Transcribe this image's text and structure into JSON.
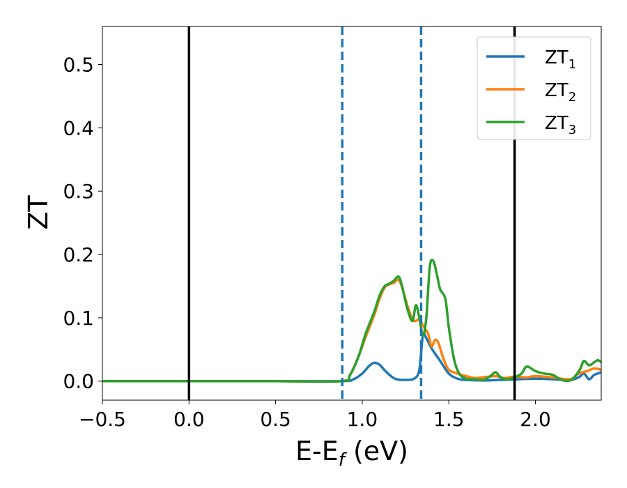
{
  "chart_data": {
    "type": "line",
    "xlabel": "E-E",
    "xlabel_sub": "f",
    "xlabel_unit": " (eV)",
    "ylabel": "ZT",
    "xlim": [
      -0.5,
      2.38
    ],
    "ylim": [
      -0.03,
      0.56
    ],
    "xticks": [
      -0.5,
      0.0,
      0.5,
      1.0,
      1.5,
      2.0
    ],
    "xtick_labels": [
      "−0.5",
      "0.0",
      "0.5",
      "1.0",
      "1.5",
      "2.0"
    ],
    "yticks": [
      0.0,
      0.1,
      0.2,
      0.3,
      0.4,
      0.5
    ],
    "ytick_labels": [
      "0.0",
      "0.1",
      "0.2",
      "0.3",
      "0.4",
      "0.5"
    ],
    "legend_position": "top-right",
    "vlines_solid": [
      0.0,
      1.88
    ],
    "vlines_dashed": [
      0.885,
      1.34
    ],
    "vline_solid_color": "#000000",
    "vline_dashed_color": "#1f77b4",
    "series": [
      {
        "name": "ZT",
        "name_sub": "1",
        "color": "#1f77b4",
        "x": [
          -0.5,
          0.0,
          0.5,
          0.88,
          0.95,
          1.0,
          1.04,
          1.07,
          1.1,
          1.13,
          1.17,
          1.2,
          1.25,
          1.3,
          1.33,
          1.35,
          1.37,
          1.4,
          1.45,
          1.5,
          1.55,
          1.6,
          1.7,
          1.8,
          1.9,
          2.0,
          2.1,
          2.2,
          2.25,
          2.28,
          2.31,
          2.34,
          2.38
        ],
        "y": [
          0.0,
          0.0,
          0.0,
          0.0,
          0.003,
          0.012,
          0.024,
          0.029,
          0.026,
          0.017,
          0.007,
          0.003,
          0.002,
          0.004,
          0.018,
          0.072,
          0.068,
          0.052,
          0.032,
          0.012,
          0.004,
          0.002,
          0.001,
          0.002,
          0.003,
          0.004,
          0.003,
          0.002,
          0.006,
          0.012,
          0.003,
          0.01,
          0.014
        ]
      },
      {
        "name": "ZT",
        "name_sub": "2",
        "color": "#ff7f0e",
        "x": [
          -0.5,
          0.0,
          0.5,
          0.88,
          0.93,
          0.98,
          1.02,
          1.07,
          1.1,
          1.13,
          1.15,
          1.18,
          1.21,
          1.23,
          1.26,
          1.29,
          1.31,
          1.33,
          1.35,
          1.38,
          1.4,
          1.42,
          1.44,
          1.47,
          1.5,
          1.55,
          1.6,
          1.65,
          1.7,
          1.77,
          1.82,
          1.88,
          1.95,
          2.0,
          2.1,
          2.2,
          2.25,
          2.3,
          2.34,
          2.38
        ],
        "y": [
          0.0,
          0.0,
          0.0,
          0.0,
          0.01,
          0.04,
          0.07,
          0.105,
          0.13,
          0.148,
          0.152,
          0.155,
          0.16,
          0.148,
          0.12,
          0.098,
          0.095,
          0.098,
          0.088,
          0.075,
          0.055,
          0.065,
          0.06,
          0.035,
          0.018,
          0.012,
          0.008,
          0.005,
          0.006,
          0.008,
          0.005,
          0.007,
          0.006,
          0.008,
          0.006,
          0.003,
          0.012,
          0.016,
          0.02,
          0.018
        ]
      },
      {
        "name": "ZT",
        "name_sub": "3",
        "color": "#2ca02c",
        "x": [
          -0.5,
          0.0,
          0.5,
          0.88,
          0.93,
          0.98,
          1.02,
          1.07,
          1.1,
          1.13,
          1.15,
          1.18,
          1.21,
          1.23,
          1.26,
          1.29,
          1.31,
          1.33,
          1.35,
          1.37,
          1.39,
          1.41,
          1.43,
          1.45,
          1.48,
          1.5,
          1.53,
          1.56,
          1.6,
          1.65,
          1.7,
          1.74,
          1.77,
          1.8,
          1.84,
          1.88,
          1.92,
          1.95,
          2.0,
          2.05,
          2.1,
          2.15,
          2.2,
          2.23,
          2.26,
          2.28,
          2.31,
          2.34,
          2.36,
          2.38
        ],
        "y": [
          0.0,
          0.0,
          0.0,
          0.0,
          0.01,
          0.04,
          0.075,
          0.11,
          0.135,
          0.15,
          0.153,
          0.158,
          0.165,
          0.15,
          0.115,
          0.095,
          0.12,
          0.1,
          0.072,
          0.1,
          0.18,
          0.19,
          0.17,
          0.145,
          0.13,
          0.085,
          0.035,
          0.012,
          0.004,
          0.003,
          0.002,
          0.008,
          0.014,
          0.006,
          0.003,
          0.006,
          0.012,
          0.023,
          0.016,
          0.012,
          0.01,
          0.002,
          0.001,
          0.008,
          0.02,
          0.032,
          0.025,
          0.03,
          0.033,
          0.03
        ]
      }
    ]
  }
}
